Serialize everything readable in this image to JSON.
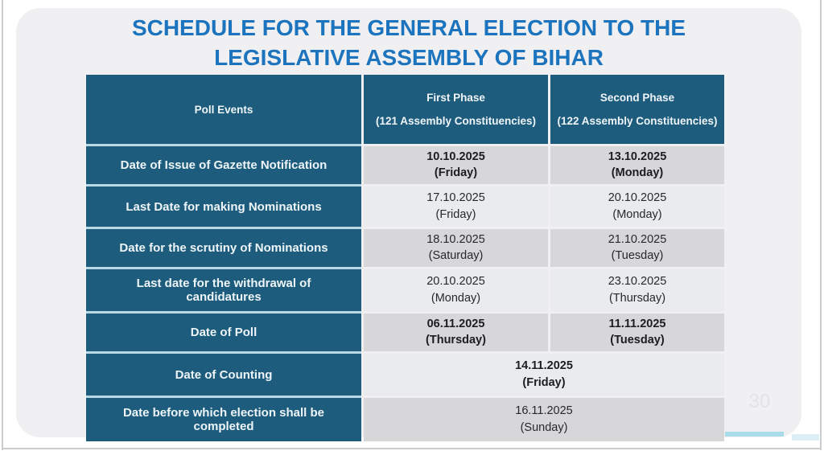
{
  "title": {
    "line1": "SCHEDULE FOR THE GENERAL ELECTION TO THE",
    "line2": "LEGISLATIVE ASSEMBLY OF BIHAR"
  },
  "page_number": "30",
  "table": {
    "header": {
      "poll_events": "Poll Events",
      "first_phase": {
        "name": "First Phase",
        "constituencies": "(121 Assembly Constituencies)"
      },
      "second_phase": {
        "name": "Second Phase",
        "constituencies": "(122 Assembly Constituencies)"
      }
    },
    "rows": [
      {
        "event": "Date of Issue of Gazette Notification",
        "first": {
          "date": "10.10.2025",
          "day": "(Friday)"
        },
        "second": {
          "date": "13.10.2025",
          "day": "(Monday)"
        }
      },
      {
        "event": "Last Date for making Nominations",
        "first": {
          "date": "17.10.2025",
          "day": "(Friday)"
        },
        "second": {
          "date": "20.10.2025",
          "day": "(Monday)"
        }
      },
      {
        "event": "Date for the scrutiny of Nominations",
        "first": {
          "date": "18.10.2025",
          "day": "(Saturday)"
        },
        "second": {
          "date": "21.10.2025",
          "day": "(Tuesday)"
        }
      },
      {
        "event": "Last date for the withdrawal of candidatures",
        "first": {
          "date": "20.10.2025",
          "day": "(Monday)"
        },
        "second": {
          "date": "23.10.2025",
          "day": "(Thursday)"
        }
      },
      {
        "event": "Date of Poll",
        "first": {
          "date": "06.11.2025",
          "day": "(Thursday)"
        },
        "second": {
          "date": "11.11.2025",
          "day": "(Tuesday)"
        }
      },
      {
        "event": "Date of Counting",
        "merged": {
          "date": "14.11.2025",
          "day": "(Friday)"
        }
      },
      {
        "event": "Date before which election shall be completed",
        "merged": {
          "date": "16.11.2025",
          "day": "(Sunday)"
        }
      }
    ]
  },
  "colors": {
    "title_blue": "#1b74bd",
    "header_teal": "#1e5c7d",
    "row_dark_bg": "#d7d7da",
    "row_light_bg": "#eaebec",
    "accent_cyan": "#a9dce9",
    "label_divider": "#b9d9e8",
    "frame_line": "#cccccc"
  }
}
